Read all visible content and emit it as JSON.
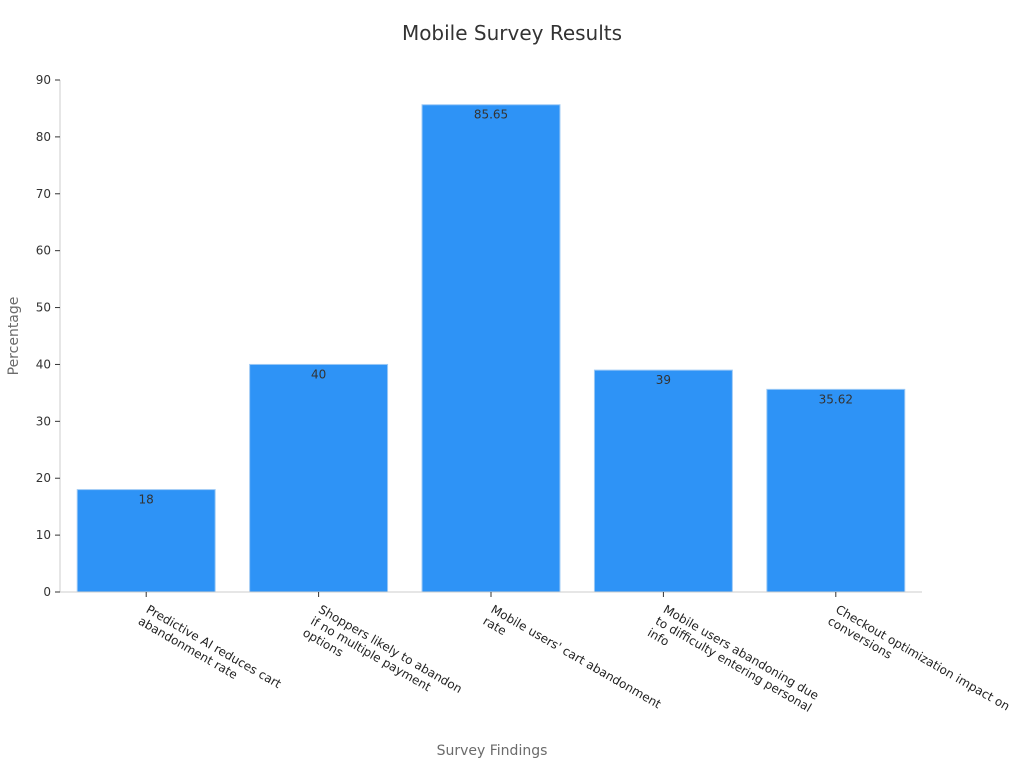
{
  "chart_data": {
    "type": "bar",
    "title": "Mobile Survey Results",
    "xlabel": "Survey Findings",
    "ylabel": "Percentage",
    "categories": [
      "Predictive AI reduces cart abandonment rate",
      "Shoppers likely to abandon if no multiple payment options",
      "Mobile users' cart abandonment rate",
      "Mobile users abandoning due to difficulty entering personal info",
      "Checkout optimization impact on conversions"
    ],
    "category_label_lines": [
      [
        "Predictive AI reduces cart",
        "abandonment rate"
      ],
      [
        "Shoppers likely to abandon",
        "if no multiple payment",
        "options"
      ],
      [
        "Mobile users' cart abandonment",
        "rate"
      ],
      [
        "Mobile users abandoning due",
        "to difficulty entering personal",
        "info"
      ],
      [
        "Checkout optimization impact on",
        "conversions"
      ]
    ],
    "values": [
      18,
      40,
      85.65,
      39,
      35.62
    ],
    "value_labels": [
      "18",
      "40",
      "85.65",
      "39",
      "35.62"
    ],
    "ylim": [
      0,
      90
    ],
    "yticks": [
      0,
      10,
      20,
      30,
      40,
      50,
      60,
      70,
      80,
      90
    ],
    "grid": false,
    "legend": "none",
    "bar_color": "#2e93f6"
  }
}
